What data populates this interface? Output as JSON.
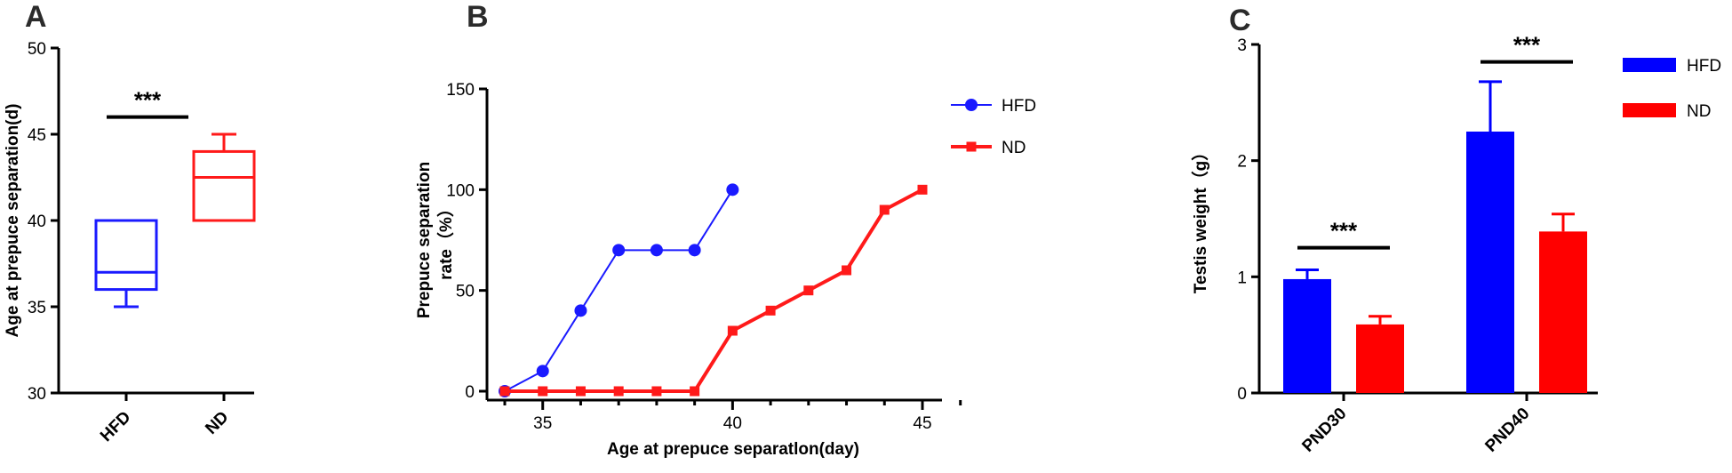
{
  "panels": [
    {
      "letter": "A"
    },
    {
      "letter": "B"
    },
    {
      "letter": "C"
    }
  ],
  "chart_data": [
    {
      "type": "box",
      "ylabel": "Age at prepuce separation(d)",
      "ylim": [
        30,
        50
      ],
      "yticks": [
        30,
        35,
        40,
        45,
        50
      ],
      "categories": [
        "HFD",
        "ND"
      ],
      "boxes": [
        {
          "name": "HFD",
          "color": "#1a1aff",
          "min": 35,
          "q1": 36,
          "median": 37,
          "q3": 40,
          "max": 40
        },
        {
          "name": "ND",
          "color": "#ff1a1a",
          "min": 40,
          "q1": 40,
          "median": 42.5,
          "q3": 44,
          "max": 45
        }
      ],
      "annotations": [
        {
          "text": "***",
          "between": [
            "HFD",
            "ND"
          ],
          "y": 46
        }
      ]
    },
    {
      "type": "line",
      "xlabel": "Age at prepuce separatlon(day)",
      "ylabel_lines": [
        "Prepuce separation",
        "rate（%）"
      ],
      "xlim": [
        34,
        46
      ],
      "ylim": [
        0,
        150
      ],
      "xticks": [
        35,
        40,
        45
      ],
      "yticks": [
        0,
        50,
        100,
        150
      ],
      "series": [
        {
          "name": "HFD",
          "color": "#1a1aff",
          "marker": "circle",
          "x": [
            34,
            35,
            36,
            37,
            38,
            39,
            40
          ],
          "y": [
            0,
            10,
            40,
            70,
            70,
            70,
            100
          ]
        },
        {
          "name": "ND",
          "color": "#ff1a1a",
          "marker": "square",
          "x": [
            34,
            35,
            36,
            37,
            38,
            39,
            40,
            41,
            42,
            43,
            44,
            45
          ],
          "y": [
            0,
            0,
            0,
            0,
            0,
            0,
            30,
            40,
            50,
            60,
            90,
            100
          ]
        }
      ],
      "legend": "top-right"
    },
    {
      "type": "bar",
      "ylabel": "Testis weight（g）",
      "ylim": [
        0,
        3
      ],
      "yticks": [
        0,
        1,
        2,
        3
      ],
      "categories": [
        "PND30",
        "PND40"
      ],
      "series": [
        {
          "name": "HFD",
          "color": "#0000ff",
          "values": [
            0.98,
            2.25
          ],
          "errors": [
            0.08,
            0.43
          ]
        },
        {
          "name": "ND",
          "color": "#ff0000",
          "values": [
            0.59,
            1.39
          ],
          "errors": [
            0.07,
            0.15
          ]
        }
      ],
      "annotations": [
        {
          "text": "***",
          "category": "PND30",
          "y": 1.25
        },
        {
          "text": "***",
          "category": "PND40",
          "y": 2.85
        }
      ],
      "legend": "top-right"
    }
  ]
}
